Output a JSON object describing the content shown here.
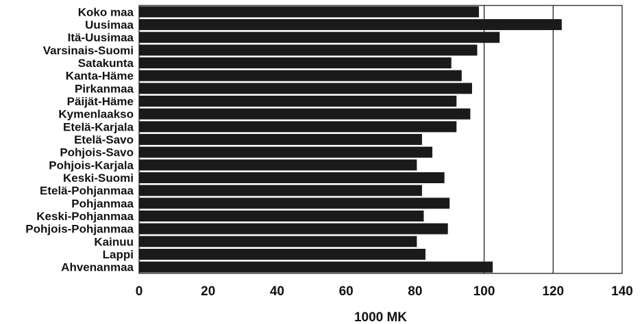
{
  "chart_data": {
    "type": "bar",
    "orientation": "horizontal",
    "categories": [
      "Koko maa",
      "Uusimaa",
      "Itä-Uusimaa",
      "Varsinais-Suomi",
      "Satakunta",
      "Kanta-Häme",
      "Pirkanmaa",
      "Päijät-Häme",
      "Kymenlaakso",
      "Etelä-Karjala",
      "Etelä-Savo",
      "Pohjois-Savo",
      "Pohjois-Karjala",
      "Keski-Suomi",
      "Etelä-Pohjanmaa",
      "Pohjanmaa",
      "Keski-Pohjanmaa",
      "Pohjois-Pohjanmaa",
      "Kainuu",
      "Lappi",
      "Ahvenanmaa"
    ],
    "values": [
      98.5,
      122.5,
      104.5,
      98.0,
      90.5,
      93.5,
      96.5,
      92.0,
      96.0,
      92.0,
      82.0,
      85.0,
      80.5,
      88.5,
      82.0,
      90.0,
      82.5,
      89.5,
      80.5,
      83.0,
      102.5
    ],
    "xlabel": "1000 MK",
    "ylabel": "",
    "title": "",
    "xlim": [
      0,
      140
    ],
    "xticks": [
      0,
      20,
      40,
      60,
      80,
      100,
      120,
      140
    ],
    "gridlines_at": [
      100,
      120
    ],
    "grid": true,
    "legend": "none",
    "bar_color": "#1a1a1a",
    "background": "#ffffff"
  }
}
